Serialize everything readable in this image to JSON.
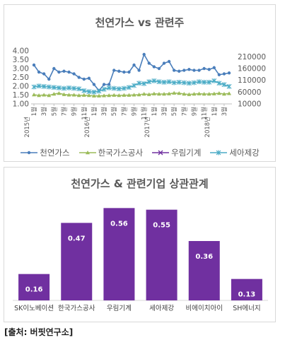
{
  "source": "[출처: 버핏연구소]",
  "colors": {
    "lng": "#4a7ebb",
    "kogas": "#9bbb59",
    "woorim": "#7030a0",
    "seah": "#4bacc6",
    "bar": "#7030a0"
  },
  "chart_data": [
    {
      "type": "line",
      "title": "천연가스 vs 관련주",
      "x_tick_labels": [
        "1월",
        "3월",
        "5월",
        "7월",
        "9월",
        "11월",
        "1월",
        "3월",
        "5월",
        "7월",
        "9월",
        "11월",
        "1월",
        "3월",
        "5월",
        "7월",
        "9월",
        "11월",
        "1월",
        "3월"
      ],
      "year_labels": [
        {
          "label": "2015년",
          "index": 0
        },
        {
          "label": "2016년",
          "index": 12
        },
        {
          "label": "2017년",
          "index": 24
        },
        {
          "label": "2018년",
          "index": 36
        }
      ],
      "left_axis": {
        "ticks": [
          "1.00",
          "1.50",
          "2.00",
          "2.50",
          "3.00",
          "3.50",
          "4.00"
        ],
        "ylim": [
          1.0,
          4.0
        ]
      },
      "right_axis": {
        "ticks": [
          "10000",
          "60000",
          "110000",
          "160000",
          "210000"
        ],
        "ylim": [
          10000,
          235000
        ]
      },
      "series": [
        {
          "name": "천연가스",
          "axis": "left",
          "marker": "circle",
          "values": [
            3.2,
            2.8,
            2.7,
            2.4,
            3.0,
            2.8,
            2.85,
            2.8,
            2.7,
            2.5,
            2.4,
            2.45,
            2.1,
            1.75,
            2.1,
            2.1,
            2.9,
            2.85,
            2.8,
            2.8,
            3.2,
            2.9,
            3.8,
            3.3,
            3.1,
            3.0,
            3.3,
            3.4,
            2.9,
            2.85,
            2.9,
            2.95,
            2.9,
            2.9,
            3.0,
            2.95,
            3.05,
            2.65,
            2.7,
            2.75
          ]
        },
        {
          "name": "한국가스공사",
          "axis": "right",
          "marker": "triangle",
          "values": [
            49000,
            46000,
            48000,
            46000,
            52000,
            55000,
            50000,
            48000,
            48000,
            46000,
            47000,
            46000,
            44000,
            44000,
            45000,
            46000,
            47000,
            46000,
            47000,
            47000,
            48000,
            49000,
            52000,
            50000,
            53000,
            52000,
            52000,
            53000,
            56000,
            55000,
            52000,
            50000,
            52000,
            53000,
            52000,
            52000,
            53000,
            55000,
            52000,
            54000
          ]
        },
        {
          "name": "우림기계",
          "axis": "right",
          "marker": "x",
          "values": []
        },
        {
          "name": "세아제강",
          "axis": "right",
          "marker": "star",
          "values": [
            82000,
            86000,
            84000,
            82000,
            80000,
            78000,
            76000,
            78000,
            76000,
            74000,
            66000,
            62000,
            60000,
            64000,
            72000,
            78000,
            76000,
            74000,
            76000,
            80000,
            88000,
            98000,
            96000,
            104000,
            108000,
            104000,
            102000,
            104000,
            100000,
            102000,
            100000,
            98000,
            100000,
            104000,
            102000,
            102000,
            108000,
            98000,
            92000,
            84000
          ]
        }
      ]
    },
    {
      "type": "bar",
      "title": "천연가스 & 관련기업 상관관계",
      "categories": [
        "SK이노베이션",
        "한국가스공사",
        "우림기계",
        "세아제강",
        "비에이치아이",
        "SH에너지"
      ],
      "values": [
        0.16,
        0.47,
        0.56,
        0.55,
        0.36,
        0.13
      ],
      "value_labels": [
        "0.16",
        "0.47",
        "0.56",
        "0.55",
        "0.36",
        "0.13"
      ],
      "ylim": [
        0,
        0.6
      ]
    }
  ]
}
